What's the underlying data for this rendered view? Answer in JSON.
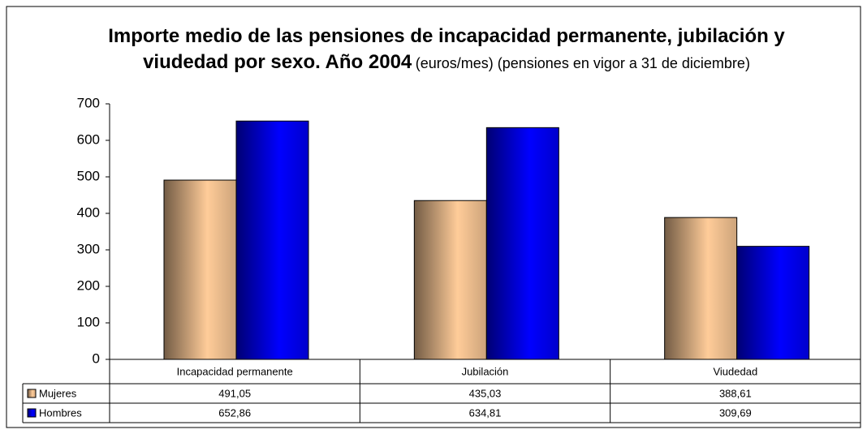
{
  "chart_data": {
    "type": "bar",
    "title": "Importe medio de las pensiones de incapacidad permanente, jubilación y viudedad por sexo. Año 2004",
    "subtitle": "(euros/mes) (pensiones en vigor a 31 de diciembre)",
    "categories": [
      "Incapacidad permanente",
      "Jubilación",
      "Viudedad"
    ],
    "series": [
      {
        "name": "Mujeres",
        "color": "#ffcc99",
        "values": [
          491.05,
          435.03,
          388.61
        ],
        "value_labels": [
          "491,05",
          "435,03",
          "388,61"
        ]
      },
      {
        "name": "Hombres",
        "color": "#0000ff",
        "values": [
          652.86,
          634.81,
          309.69
        ],
        "value_labels": [
          "652,86",
          "634,81",
          "309,69"
        ]
      }
    ],
    "ylim": [
      0,
      700
    ],
    "yticks": [
      0,
      100,
      200,
      300,
      400,
      500,
      600,
      700
    ],
    "grid": false,
    "legend": "table"
  }
}
